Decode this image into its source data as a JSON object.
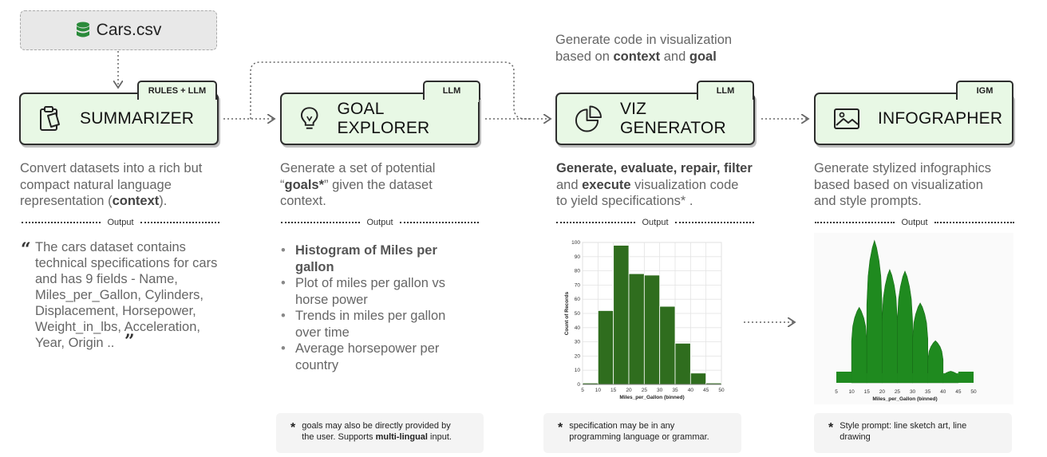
{
  "source": {
    "label": "Cars.csv",
    "icon": "database-icon"
  },
  "top_caption": {
    "line1": "Generate code in visualization",
    "line2_pre": "based on ",
    "line2_b1": "context",
    "line2_mid": " and ",
    "line2_b2": "goal"
  },
  "modules": {
    "summarizer": {
      "title": "SUMMARIZER",
      "tag": "RULES + LLM",
      "icon": "clipboard-icon"
    },
    "goal_explorer": {
      "title": "GOAL EXPLORER",
      "tag": "LLM",
      "icon": "lightbulb-icon"
    },
    "viz_generator": {
      "title": "VIZ GENERATOR",
      "tag": "LLM",
      "icon": "pie-chart-icon"
    },
    "infographer": {
      "title": "INFOGRAPHER",
      "tag": "IGM",
      "icon": "image-icon"
    }
  },
  "descriptions": {
    "summarizer": {
      "l1": "Convert datasets into a rich but",
      "l2": "compact natural language",
      "l3_pre": "representation (",
      "l3_b": "context",
      "l3_post": ")."
    },
    "goal_explorer": {
      "l1": "Generate a set of potential",
      "l2_pre": "“",
      "l2_b": "goals*",
      "l2_post": "” given the dataset",
      "l3": "context."
    },
    "viz_generator": {
      "l1_b": "Generate, evaluate, repair, filter",
      "l2_pre": "and ",
      "l2_b": "execute",
      "l2_post": " visualization code",
      "l3": "to yield specifications* ."
    },
    "infographer": {
      "l1": "Generate stylized infographics",
      "l2": "based based on visualization",
      "l3": "and style prompts."
    }
  },
  "output_label": "Output",
  "summary_quote": {
    "open": "“",
    "text": "The cars dataset contains technical specifications for cars and has 9 fields - Name, Miles_per_Gallon, Cylinders, Displacement, Horsepower, Weight_in_lbs, Acceleration, Year, Origin ..",
    "close": "”"
  },
  "goals": [
    "Histogram of Miles per gallon",
    "Plot of miles per gallon vs horse power",
    "Trends in miles per gallon over time",
    "Average horsepower per country"
  ],
  "notes": {
    "goal_explorer": {
      "star": "*",
      "line1": "goals may also be directly provided by",
      "line2_pre": "the user. Supports ",
      "line2_b": "multi-lingual",
      "line2_post": " input."
    },
    "viz_generator": {
      "star": "*",
      "line1": "specification may be in any",
      "line2": "programming language or grammar."
    },
    "infographer": {
      "star": "*",
      "line1": "Style prompt: line sketch art, line",
      "line2": "drawing"
    }
  },
  "colors": {
    "module_fill": "#e8f8e5",
    "bar": "#2f6d1e",
    "infographic": "#1f8a1f",
    "text_gray": "#666666"
  },
  "chart_data": [
    {
      "type": "bar",
      "title": "",
      "xlabel": "Miles_per_Gallon (binned)",
      "ylabel": "Count of Records",
      "bins": [
        [
          5,
          10
        ],
        [
          10,
          15
        ],
        [
          15,
          20
        ],
        [
          20,
          25
        ],
        [
          25,
          30
        ],
        [
          30,
          35
        ],
        [
          35,
          40
        ],
        [
          40,
          45
        ],
        [
          45,
          50
        ]
      ],
      "values": [
        1,
        52,
        98,
        78,
        77,
        55,
        29,
        8,
        1
      ],
      "x_ticks": [
        5,
        10,
        15,
        20,
        25,
        30,
        35,
        40,
        45,
        50
      ],
      "y_ticks": [
        0,
        10,
        20,
        30,
        40,
        50,
        60,
        70,
        80,
        90,
        100
      ],
      "xlim": [
        5,
        50
      ],
      "ylim": [
        0,
        100
      ],
      "grid": true
    },
    {
      "type": "bar",
      "title": "",
      "xlabel": "Miles_per_Gallon (binned)",
      "ylabel": "",
      "bins": [
        [
          5,
          10
        ],
        [
          10,
          15
        ],
        [
          15,
          20
        ],
        [
          20,
          25
        ],
        [
          25,
          30
        ],
        [
          30,
          35
        ],
        [
          35,
          40
        ],
        [
          40,
          45
        ],
        [
          45,
          50
        ]
      ],
      "values": [
        1,
        52,
        98,
        78,
        77,
        55,
        29,
        8,
        1
      ],
      "x_ticks": [
        5,
        10,
        15,
        20,
        25,
        30,
        35,
        40,
        45,
        50
      ],
      "xlim": [
        5,
        50
      ],
      "ylim": [
        0,
        100
      ],
      "grid": false
    }
  ]
}
